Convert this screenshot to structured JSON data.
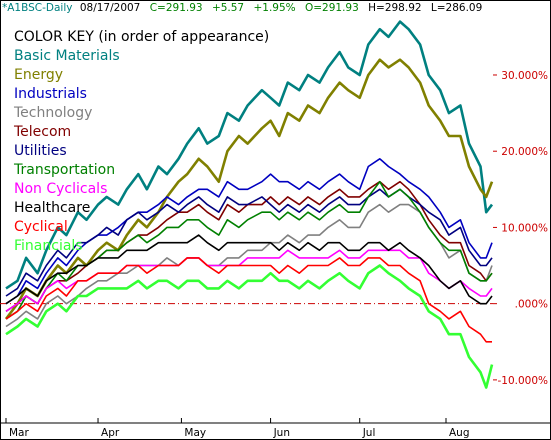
{
  "header": {
    "symbol": "*A1BSC-Daily",
    "date": "08/17/2007",
    "close": "C=291.93",
    "change": "+5.57",
    "change_pct": "+1.95%",
    "open": "O=291.93",
    "high": "H=298.92",
    "low": "L=286.09"
  },
  "legend": {
    "title": "COLOR KEY (in order of appearance)"
  },
  "colors": {
    "header_symbol": "#008080",
    "header_values": "#008000",
    "zero_line": "#cc0000",
    "axis_labels": "#cc0000"
  },
  "chart_data": {
    "type": "line",
    "x": [
      "2007-03-01",
      "2007-03-05",
      "2007-03-08",
      "2007-03-12",
      "2007-03-15",
      "2007-03-19",
      "2007-03-22",
      "2007-03-26",
      "2007-03-29",
      "2007-04-02",
      "2007-04-05",
      "2007-04-09",
      "2007-04-12",
      "2007-04-16",
      "2007-04-19",
      "2007-04-23",
      "2007-04-26",
      "2007-04-30",
      "2007-05-03",
      "2007-05-07",
      "2007-05-10",
      "2007-05-14",
      "2007-05-17",
      "2007-05-21",
      "2007-05-24",
      "2007-05-29",
      "2007-06-01",
      "2007-06-04",
      "2007-06-07",
      "2007-06-11",
      "2007-06-14",
      "2007-06-18",
      "2007-06-21",
      "2007-06-25",
      "2007-06-28",
      "2007-07-02",
      "2007-07-05",
      "2007-07-09",
      "2007-07-12",
      "2007-07-16",
      "2007-07-19",
      "2007-07-23",
      "2007-07-26",
      "2007-07-30",
      "2007-08-02",
      "2007-08-06",
      "2007-08-09",
      "2007-08-13",
      "2007-08-15",
      "2007-08-17"
    ],
    "x_ticks": [
      "Mar",
      "Apr",
      "May",
      "Jun",
      "Jul",
      "Aug"
    ],
    "y_ticks": [
      "30.000%",
      "20.000%",
      "10.000%",
      ".000%",
      "-10.000%"
    ],
    "y_tick_values": [
      30,
      20,
      10,
      0,
      -10
    ],
    "ylim": [
      -15,
      38
    ],
    "zero_line": 0,
    "series": [
      {
        "name": "Basic Materials",
        "color": "#008080",
        "values": [
          2,
          3,
          6,
          4,
          7,
          10,
          9,
          12,
          11,
          13,
          14,
          13,
          15,
          17,
          15,
          18,
          17,
          19,
          21,
          23,
          21,
          22,
          25,
          24,
          26,
          28,
          27,
          26,
          29,
          28,
          30,
          29,
          31,
          33,
          31,
          30,
          34,
          36,
          35,
          37,
          36,
          34,
          30,
          28,
          25,
          26,
          21,
          18,
          12,
          13
        ]
      },
      {
        "name": "Energy",
        "color": "#808000",
        "values": [
          -2,
          0,
          2,
          1,
          3,
          5,
          4,
          6,
          5,
          7,
          8,
          7,
          9,
          11,
          10,
          12,
          14,
          16,
          17,
          19,
          18,
          16,
          20,
          22,
          21,
          23,
          24,
          22,
          25,
          24,
          26,
          25,
          27,
          29,
          28,
          27,
          30,
          32,
          31,
          32,
          31,
          29,
          26,
          24,
          22,
          22,
          18,
          15,
          14,
          16
        ]
      },
      {
        "name": "Industrials",
        "color": "#0000c0",
        "values": [
          0,
          1,
          3,
          2,
          4,
          6,
          5,
          7,
          8,
          9,
          9,
          10,
          11,
          12,
          12,
          13,
          14,
          13,
          14,
          15,
          15,
          14,
          16,
          15,
          15,
          16,
          17,
          16,
          16,
          15,
          16,
          15,
          16,
          17,
          16,
          15,
          18,
          19,
          18,
          17,
          16,
          15,
          14,
          12,
          10,
          11,
          8,
          6,
          6,
          8
        ]
      },
      {
        "name": "Technology",
        "color": "#808080",
        "values": [
          -3,
          -2,
          -1,
          -2,
          0,
          1,
          0,
          1,
          2,
          3,
          3,
          4,
          4,
          5,
          5,
          5,
          6,
          5,
          6,
          6,
          5,
          5,
          6,
          6,
          7,
          7,
          8,
          8,
          9,
          8,
          9,
          9,
          10,
          11,
          10,
          10,
          12,
          13,
          12,
          13,
          13,
          12,
          10,
          8,
          6,
          7,
          4,
          3,
          3,
          5
        ]
      },
      {
        "name": "Telecom",
        "color": "#800000",
        "values": [
          -1,
          0,
          1,
          0,
          2,
          3,
          3,
          4,
          5,
          6,
          7,
          7,
          8,
          9,
          9,
          10,
          11,
          12,
          12,
          13,
          12,
          11,
          13,
          12,
          13,
          13,
          14,
          13,
          14,
          13,
          14,
          13,
          14,
          15,
          14,
          14,
          15,
          16,
          15,
          16,
          15,
          13,
          11,
          9,
          8,
          8,
          5,
          4,
          3,
          4
        ]
      },
      {
        "name": "Utilities",
        "color": "#000080",
        "values": [
          1,
          2,
          4,
          3,
          5,
          7,
          6,
          8,
          8,
          9,
          10,
          9,
          11,
          12,
          11,
          12,
          13,
          12,
          13,
          14,
          13,
          12,
          14,
          13,
          13,
          14,
          13,
          12,
          13,
          12,
          13,
          12,
          13,
          14,
          13,
          13,
          14,
          15,
          14,
          15,
          14,
          13,
          12,
          11,
          9,
          10,
          7,
          5,
          5,
          6
        ]
      },
      {
        "name": "Transportation",
        "color": "#008000",
        "values": [
          -2,
          -1,
          1,
          0,
          2,
          4,
          3,
          5,
          5,
          6,
          7,
          7,
          8,
          9,
          8,
          9,
          10,
          10,
          11,
          11,
          10,
          9,
          11,
          10,
          11,
          12,
          12,
          11,
          12,
          11,
          12,
          11,
          12,
          13,
          12,
          12,
          14,
          16,
          14,
          15,
          14,
          12,
          10,
          8,
          7,
          7,
          4,
          3,
          3,
          4
        ]
      },
      {
        "name": "Non Cyclicals",
        "color": "#ff00ff",
        "values": [
          -1,
          0,
          1,
          0,
          2,
          3,
          2,
          3,
          3,
          4,
          4,
          4,
          5,
          5,
          5,
          5,
          5,
          5,
          6,
          6,
          5,
          5,
          5,
          5,
          6,
          6,
          6,
          6,
          7,
          6,
          6,
          6,
          6,
          7,
          6,
          6,
          7,
          7,
          7,
          7,
          6,
          6,
          4,
          3,
          2,
          3,
          2,
          1,
          1,
          2
        ]
      },
      {
        "name": "Healthcare",
        "color": "#000000",
        "values": [
          0,
          1,
          2,
          1,
          3,
          4,
          4,
          5,
          5,
          6,
          6,
          6,
          7,
          7,
          7,
          8,
          8,
          8,
          8,
          9,
          8,
          7,
          8,
          8,
          8,
          8,
          8,
          7,
          8,
          7,
          8,
          7,
          8,
          8,
          7,
          7,
          8,
          8,
          7,
          8,
          7,
          6,
          5,
          3,
          2,
          3,
          1,
          0,
          0,
          1
        ]
      },
      {
        "name": "Cyclical",
        "color": "#ff0000",
        "values": [
          -2,
          -1,
          0,
          -1,
          1,
          2,
          1,
          3,
          3,
          4,
          4,
          4,
          5,
          5,
          4,
          5,
          5,
          5,
          6,
          6,
          5,
          4,
          5,
          5,
          5,
          5,
          5,
          4,
          5,
          4,
          5,
          5,
          5,
          6,
          5,
          5,
          6,
          6,
          5,
          5,
          4,
          3,
          0,
          -1,
          -2,
          -1,
          -3,
          -4,
          -5,
          -5
        ]
      },
      {
        "name": "Financials",
        "color": "#33ff33",
        "values": [
          -4,
          -3,
          -2,
          -3,
          -1,
          0,
          -1,
          1,
          1,
          2,
          2,
          2,
          2,
          3,
          2,
          3,
          3,
          2,
          3,
          3,
          2,
          2,
          3,
          2,
          3,
          3,
          4,
          3,
          3,
          2,
          3,
          2,
          3,
          4,
          3,
          2,
          4,
          5,
          4,
          3,
          2,
          1,
          -1,
          -2,
          -4,
          -4,
          -7,
          -9,
          -11,
          -8
        ]
      }
    ]
  }
}
